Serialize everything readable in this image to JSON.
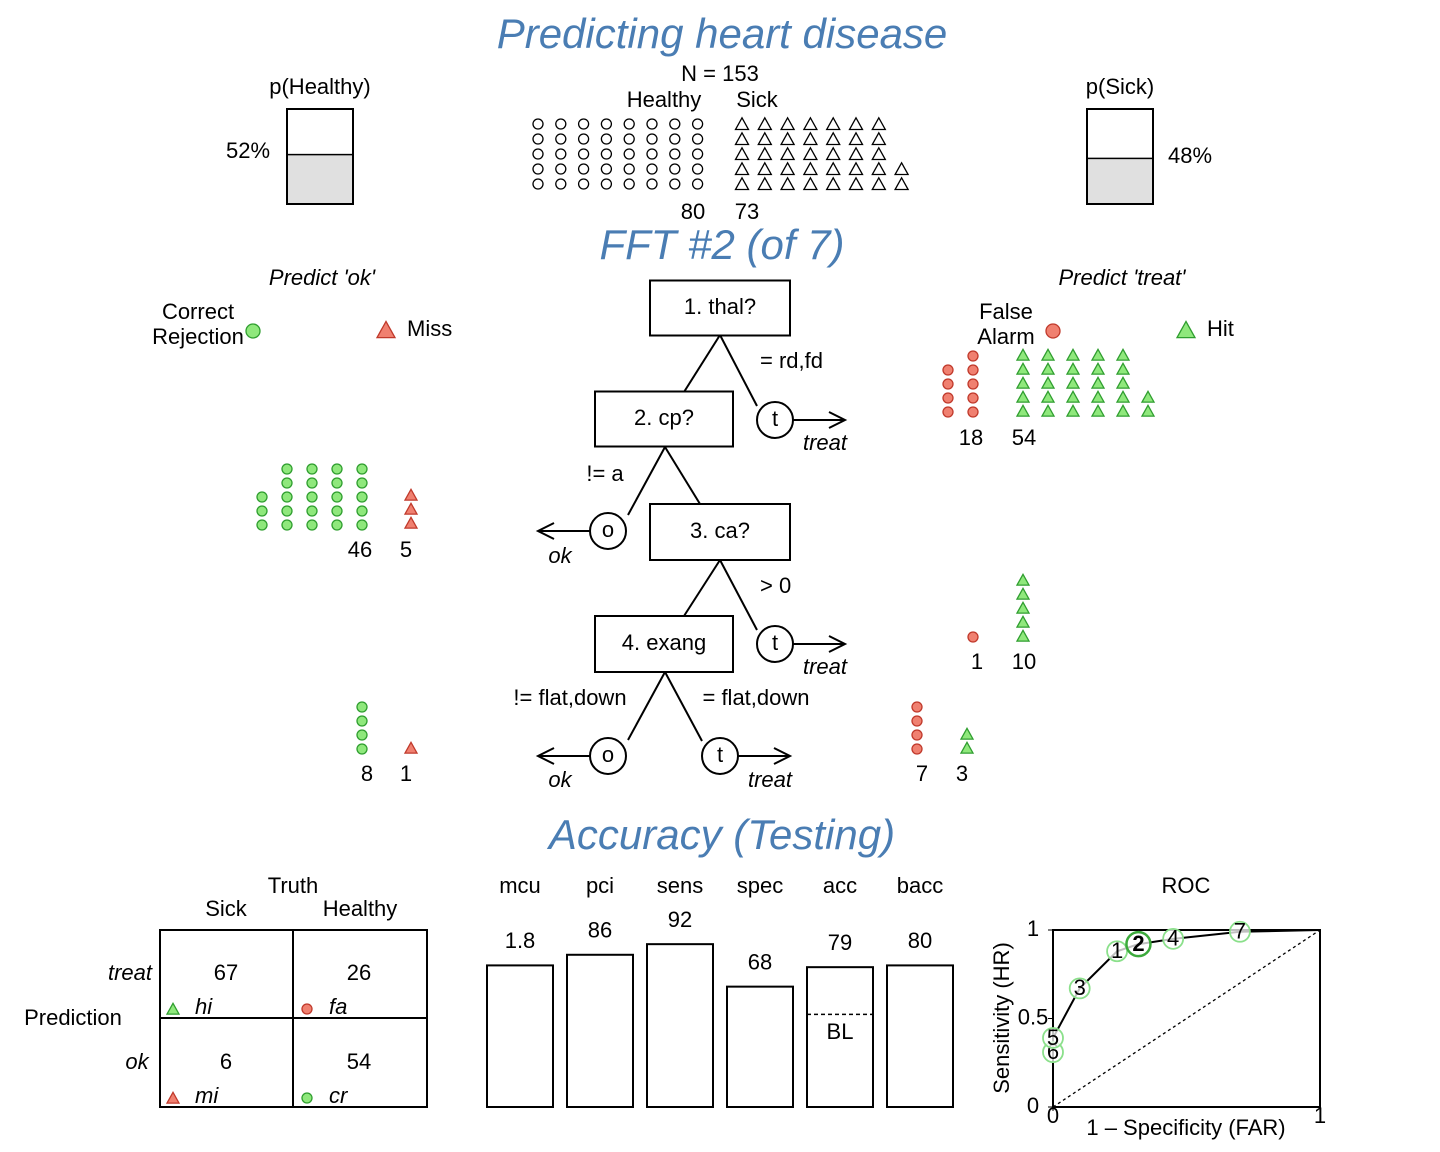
{
  "title": "Predicting heart disease",
  "header": {
    "n_label": "N = 153",
    "classes": [
      {
        "name": "Healthy",
        "count": 80
      },
      {
        "name": "Sick",
        "count": 73
      }
    ],
    "p_healthy": {
      "label": "p(Healthy)",
      "value": 52,
      "value_label": "52%"
    },
    "p_sick": {
      "label": "p(Sick)",
      "value": 48,
      "value_label": "48%"
    }
  },
  "tree": {
    "title": "FFT #2 (of 7)",
    "predict_ok": "Predict 'ok'",
    "predict_treat": "Predict 'treat'",
    "legend": {
      "cr": [
        "Correct",
        "Rejection"
      ],
      "mi": [
        "Miss"
      ],
      "fa": [
        "False",
        "Alarm"
      ],
      "hi": [
        "Hit"
      ]
    },
    "nodes": [
      {
        "label": "1. thal?",
        "exits": [
          {
            "condition": "= rd,fd",
            "symbol": "t",
            "decision": "treat"
          }
        ]
      },
      {
        "label": "2. cp?",
        "exits": [
          {
            "condition": "!= a",
            "symbol": "o",
            "decision": "ok"
          }
        ]
      },
      {
        "label": "3. ca?",
        "exits": [
          {
            "condition": "> 0",
            "symbol": "t",
            "decision": "treat"
          }
        ]
      },
      {
        "label": "4. exang",
        "exits": [
          {
            "condition": "!= flat,down",
            "symbol": "o",
            "decision": "ok"
          },
          {
            "condition": "= flat,down",
            "symbol": "t",
            "decision": "treat"
          }
        ]
      }
    ],
    "levels": [
      {
        "fa": 18,
        "hi": 54
      },
      {
        "cr": 46,
        "mi": 5
      },
      {
        "fa": 1,
        "hi": 10
      },
      {
        "cr": 8,
        "mi": 1,
        "fa": 7,
        "hi": 3
      }
    ]
  },
  "accuracy": {
    "title": "Accuracy (Testing)",
    "matrix": {
      "truth": "Truth",
      "columns": [
        "Sick",
        "Healthy"
      ],
      "prediction": "Prediction",
      "rows": [
        "treat",
        "ok"
      ],
      "cells": [
        [
          67,
          26
        ],
        [
          6,
          54
        ]
      ],
      "cell_labels": [
        [
          "hi",
          "fa"
        ],
        [
          "mi",
          "cr"
        ]
      ]
    },
    "bar_lim": [
      0,
      100
    ],
    "bars": [
      {
        "name": "mcu",
        "value": 1.8,
        "lim": [
          5,
          1
        ]
      },
      {
        "name": "pci",
        "value": 86
      },
      {
        "name": "sens",
        "value": 92
      },
      {
        "name": "spec",
        "value": 68
      },
      {
        "name": "acc",
        "value": 79
      },
      {
        "name": "bacc",
        "value": 80
      }
    ],
    "baseline": {
      "label": "BL",
      "value": 52.3
    },
    "roc": {
      "title": "ROC",
      "xlabel": "1 – Specificity (FAR)",
      "ylabel": "Sensitivity (HR)",
      "xlim": [
        0,
        1
      ],
      "ylim": [
        0,
        1
      ],
      "xticks": [
        0,
        1
      ],
      "yticks": [
        0,
        0.5,
        1
      ],
      "points": [
        {
          "label": "6",
          "far": 0.0,
          "hr": 0.31
        },
        {
          "label": "5",
          "far": 0.0,
          "hr": 0.39
        },
        {
          "label": "3",
          "far": 0.1,
          "hr": 0.67
        },
        {
          "label": "1",
          "far": 0.24,
          "hr": 0.88
        },
        {
          "label": "2",
          "far": 0.32,
          "hr": 0.92,
          "selected": true
        },
        {
          "label": "4",
          "far": 0.45,
          "hr": 0.95
        },
        {
          "label": "7",
          "far": 0.7,
          "hr": 0.99
        }
      ]
    }
  }
}
